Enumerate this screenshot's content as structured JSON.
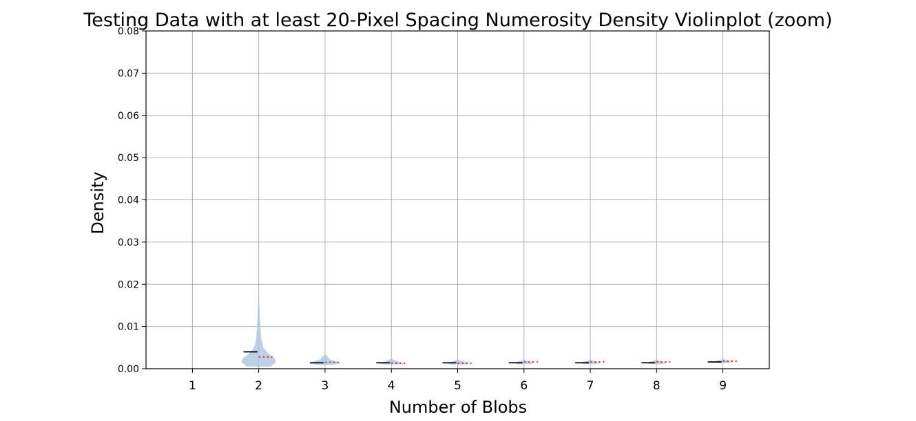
{
  "chart_data": {
    "type": "violin",
    "title": "Testing Data with at least 20-Pixel Spacing Numerosity Density Violinplot (zoom)",
    "xlabel": "Number of Blobs",
    "ylabel": "Density",
    "ylim": [
      0,
      0.08
    ],
    "yticks": [
      "0.00",
      "0.01",
      "0.02",
      "0.03",
      "0.04",
      "0.05",
      "0.06",
      "0.07",
      "0.08"
    ],
    "ytick_values": [
      0,
      0.01,
      0.02,
      0.03,
      0.04,
      0.05,
      0.06,
      0.07,
      0.08
    ],
    "categories": [
      "1",
      "2",
      "3",
      "4",
      "5",
      "6",
      "7",
      "8",
      "9"
    ],
    "x": [
      1,
      2,
      3,
      4,
      5,
      6,
      7,
      8,
      9
    ],
    "xlim": [
      0.3,
      9.7
    ],
    "grid": true,
    "median": [
      null,
      0.004,
      0.0014,
      0.0014,
      0.0014,
      0.0014,
      0.0014,
      0.0014,
      0.0016
    ],
    "mean": [
      null,
      0.0028,
      0.0015,
      0.0013,
      0.0013,
      0.0016,
      0.0016,
      0.0016,
      0.0018
    ],
    "violins": [
      null,
      {
        "profile": [
          [
            0.0005,
            0.18
          ],
          [
            0.0015,
            0.26
          ],
          [
            0.0025,
            0.24
          ],
          [
            0.0035,
            0.15
          ],
          [
            0.005,
            0.07
          ],
          [
            0.007,
            0.04
          ],
          [
            0.01,
            0.025
          ],
          [
            0.014,
            0.012
          ],
          [
            0.019,
            0.004
          ]
        ]
      },
      {
        "profile": [
          [
            0.0009,
            0.11
          ],
          [
            0.0013,
            0.24
          ],
          [
            0.0017,
            0.18
          ],
          [
            0.0022,
            0.08
          ],
          [
            0.0028,
            0.04
          ],
          [
            0.0033,
            0.012
          ]
        ]
      },
      {
        "profile": [
          [
            0.001,
            0.1
          ],
          [
            0.0013,
            0.2
          ],
          [
            0.0016,
            0.12
          ],
          [
            0.002,
            0.05
          ],
          [
            0.0023,
            0.012
          ]
        ]
      },
      {
        "profile": [
          [
            0.001,
            0.1
          ],
          [
            0.0013,
            0.18
          ],
          [
            0.0016,
            0.11
          ],
          [
            0.0019,
            0.04
          ],
          [
            0.0022,
            0.01
          ]
        ]
      },
      {
        "profile": [
          [
            0.0011,
            0.09
          ],
          [
            0.0014,
            0.17
          ],
          [
            0.0017,
            0.1
          ],
          [
            0.002,
            0.02
          ]
        ]
      },
      {
        "profile": [
          [
            0.0011,
            0.09
          ],
          [
            0.0014,
            0.17
          ],
          [
            0.0017,
            0.1
          ],
          [
            0.002,
            0.02
          ]
        ]
      },
      {
        "profile": [
          [
            0.0011,
            0.09
          ],
          [
            0.0014,
            0.17
          ],
          [
            0.0017,
            0.1
          ],
          [
            0.002,
            0.02
          ]
        ]
      },
      {
        "profile": [
          [
            0.0013,
            0.08
          ],
          [
            0.0016,
            0.15
          ],
          [
            0.0019,
            0.09
          ],
          [
            0.0022,
            0.02
          ]
        ]
      }
    ],
    "colors": {
      "violin": "#b0c8e2",
      "median": "#000000",
      "mean": "#e8303a",
      "grid": "#b0b0b0"
    }
  }
}
